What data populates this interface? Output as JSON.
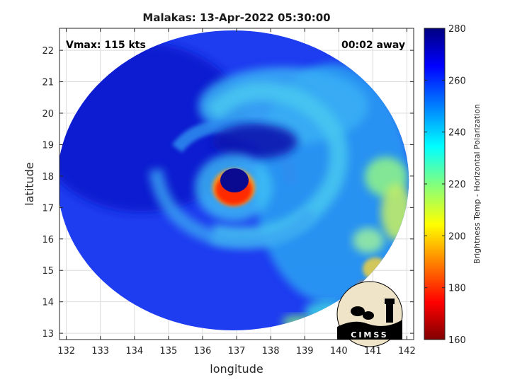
{
  "chart_data": {
    "type": "heatmap",
    "title": "Malakas: 13-Apr-2022 05:30:00",
    "xlabel": "longitude",
    "ylabel": "latitude",
    "xlim": [
      131.8,
      142.2
    ],
    "ylim": [
      12.8,
      22.7
    ],
    "xticks": [
      132,
      133,
      134,
      135,
      136,
      137,
      138,
      139,
      140,
      141,
      142
    ],
    "yticks": [
      13,
      14,
      15,
      16,
      17,
      18,
      19,
      20,
      21,
      22
    ],
    "grid": true,
    "colorbar": {
      "label": "Brightness Temp - Horizontal Polarization",
      "min": 160,
      "max": 280,
      "ticks": [
        160,
        180,
        200,
        220,
        240,
        260,
        280
      ],
      "colormap": "jet"
    },
    "annotations": {
      "vmax": "Vmax: 115 kts",
      "time_away": "00:02 away"
    },
    "storm_center": {
      "lon": 136.8,
      "lat": 17.6
    },
    "swath_center": {
      "lon": 136.9,
      "lat": 17.7
    },
    "logo_text": "CIMSS"
  }
}
